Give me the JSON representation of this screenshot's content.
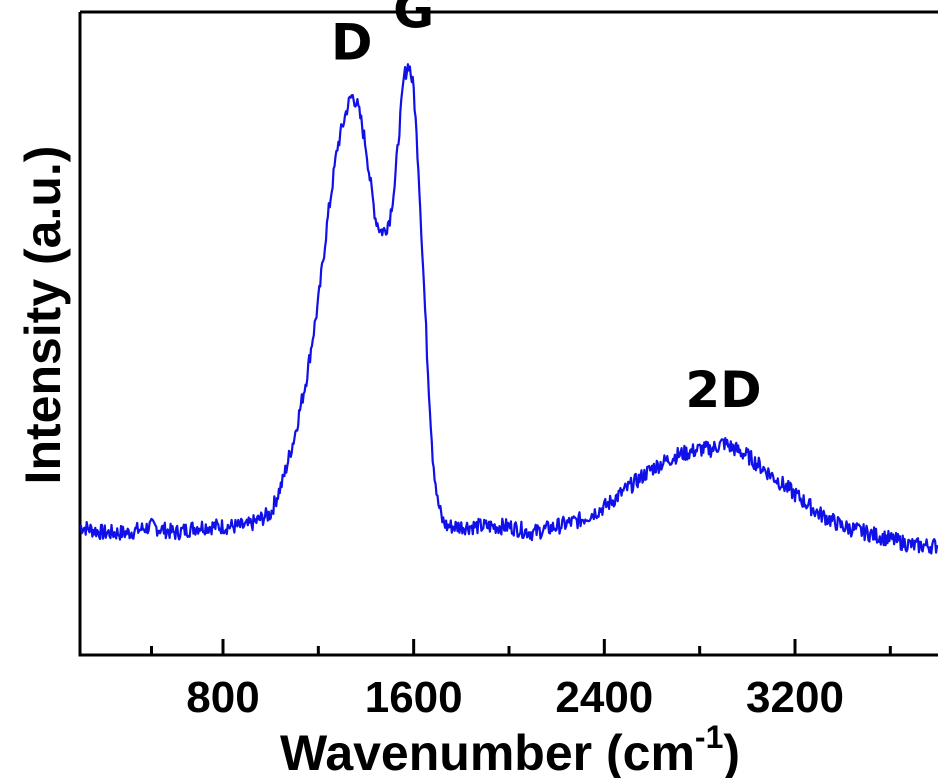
{
  "chart_data": {
    "type": "line",
    "title": "",
    "xlabel": "Wavenumber (cm",
    "xlabel_sup": "-1",
    "xlabel_close": ")",
    "ylabel": "Intensity (a.u.)",
    "xlim": [
      200,
      3800
    ],
    "ylim": [
      0,
      1.0
    ],
    "x_ticks_major": [
      800,
      1600,
      2400,
      3200
    ],
    "x_tick_labels": [
      "800",
      "1600",
      "2400",
      "3200"
    ],
    "x_ticks_minor": [
      500,
      1200,
      2000,
      2800,
      3600
    ],
    "grid": false,
    "line_color": "#1010e8",
    "series": [
      {
        "x": [
          200,
          300,
          400,
          500,
          600,
          700,
          800,
          900,
          1000,
          1050,
          1100,
          1150,
          1200,
          1240,
          1280,
          1320,
          1340,
          1360,
          1380,
          1400,
          1420,
          1440,
          1460,
          1480,
          1500,
          1520,
          1540,
          1560,
          1580,
          1600,
          1620,
          1640,
          1660,
          1680,
          1700,
          1720,
          1740,
          1760,
          1800,
          1900,
          2000,
          2100,
          2200,
          2300,
          2400,
          2500,
          2600,
          2700,
          2800,
          2850,
          2900,
          2950,
          3000,
          3100,
          3200,
          3300,
          3400,
          3500,
          3600,
          3700,
          3800
        ],
        "y": [
          0.2,
          0.19,
          0.19,
          0.2,
          0.19,
          0.2,
          0.2,
          0.2,
          0.22,
          0.27,
          0.34,
          0.43,
          0.55,
          0.68,
          0.79,
          0.85,
          0.87,
          0.86,
          0.83,
          0.79,
          0.73,
          0.68,
          0.66,
          0.66,
          0.68,
          0.73,
          0.82,
          0.9,
          0.92,
          0.88,
          0.76,
          0.6,
          0.44,
          0.31,
          0.24,
          0.21,
          0.2,
          0.2,
          0.2,
          0.2,
          0.2,
          0.19,
          0.2,
          0.21,
          0.23,
          0.26,
          0.29,
          0.31,
          0.32,
          0.32,
          0.33,
          0.32,
          0.31,
          0.28,
          0.25,
          0.22,
          0.2,
          0.19,
          0.18,
          0.17,
          0.17
        ]
      }
    ],
    "annotations": [
      {
        "text": "D",
        "x": 1340,
        "y": 0.87
      },
      {
        "text": "G",
        "x": 1600,
        "y": 0.92
      },
      {
        "text": "2D",
        "x": 2900,
        "y": 0.33
      }
    ]
  }
}
